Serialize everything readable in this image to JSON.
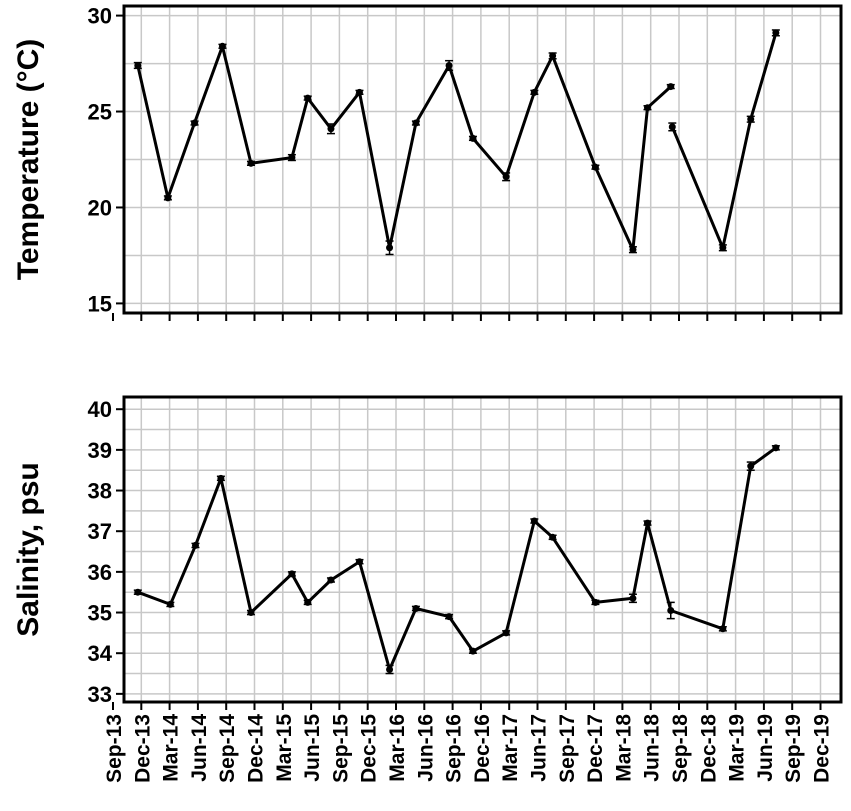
{
  "chart_data": [
    {
      "type": "line",
      "title": "",
      "xlabel": "",
      "ylabel": "Temperature (°C)",
      "ylim": [
        14.5,
        30.5
      ],
      "yticks": [
        15,
        20,
        25,
        30
      ],
      "grid": true,
      "series": [
        {
          "values": [
            {
              "x": "2013-11-20",
              "y": 27.4,
              "err": 0.15
            },
            {
              "x": "2014-02-25",
              "y": 20.5,
              "err": 0.1
            },
            {
              "x": "2014-05-22",
              "y": 24.4,
              "err": 0.1
            },
            {
              "x": "2014-08-20",
              "y": 28.4,
              "err": 0.1
            },
            {
              "x": "2014-11-20",
              "y": 22.3,
              "err": 0.1
            },
            {
              "x": "2015-04-01",
              "y": 22.6,
              "err": 0.15
            },
            {
              "x": "2015-05-22",
              "y": 25.7,
              "err": 0.1
            },
            {
              "x": "2015-08-05",
              "y": 24.1,
              "err": 0.25
            },
            {
              "x": "2015-11-05",
              "y": 26.0,
              "err": 0.1
            },
            {
              "x": "2016-02-10",
              "y": 17.9,
              "err": 0.35
            },
            {
              "x": "2016-05-05",
              "y": 24.4,
              "err": 0.1
            },
            {
              "x": "2016-08-20",
              "y": 27.4,
              "err": 0.25
            },
            {
              "x": "2016-11-05",
              "y": 23.6,
              "err": 0.1
            },
            {
              "x": "2017-02-20",
              "y": 21.6,
              "err": 0.2
            },
            {
              "x": "2017-05-22",
              "y": 26.0,
              "err": 0.1
            },
            {
              "x": "2017-07-20",
              "y": 27.9,
              "err": 0.15
            },
            {
              "x": "2017-12-05",
              "y": 22.1,
              "err": 0.1
            },
            {
              "x": "2018-04-05",
              "y": 17.8,
              "err": 0.15
            },
            {
              "x": "2018-05-22",
              "y": 25.2,
              "err": 0.1
            },
            {
              "x": "2018-08-05",
              "y": 26.3,
              "err": 0.1
            }
          ]
        },
        {
          "values": [
            {
              "x": "2018-08-10",
              "y": 24.2,
              "err": 0.2
            },
            {
              "x": "2019-01-20",
              "y": 17.9,
              "err": 0.15
            },
            {
              "x": "2019-04-20",
              "y": 24.6,
              "err": 0.15
            },
            {
              "x": "2019-07-10",
              "y": 29.1,
              "err": 0.15
            }
          ]
        }
      ]
    },
    {
      "type": "line",
      "title": "",
      "xlabel": "",
      "ylabel": "Salinity, psu",
      "ylim": [
        32.8,
        40.3
      ],
      "yticks": [
        33,
        34,
        35,
        36,
        37,
        38,
        39,
        40
      ],
      "grid": true,
      "x_tick_labels": [
        "Sep-13",
        "Dec-13",
        "Mar-14",
        "Jun-14",
        "Sep-14",
        "Dec-14",
        "Mar-15",
        "Jun-15",
        "Sep-15",
        "Dec-15",
        "Mar-16",
        "Jun-16",
        "Sep-16",
        "Dec-16",
        "Mar-17",
        "Jun-17",
        "Sep-17",
        "Dec-17",
        "Mar-18",
        "Jun-18",
        "Sep-18",
        "Dec-18",
        "Mar-19",
        "Jun-19",
        "Sep-19",
        "Dec-19"
      ],
      "series": [
        {
          "values": [
            {
              "x": "2013-11-20",
              "y": 35.5,
              "err": 0.05
            },
            {
              "x": "2014-03-05",
              "y": 35.2,
              "err": 0.05
            },
            {
              "x": "2014-05-25",
              "y": 36.65,
              "err": 0.05
            },
            {
              "x": "2014-08-15",
              "y": 38.3,
              "err": 0.05
            },
            {
              "x": "2014-11-20",
              "y": 35.0,
              "err": 0.05
            },
            {
              "x": "2015-04-01",
              "y": 35.95,
              "err": 0.05
            },
            {
              "x": "2015-05-22",
              "y": 35.25,
              "err": 0.05
            },
            {
              "x": "2015-08-05",
              "y": 35.8,
              "err": 0.05
            },
            {
              "x": "2015-11-05",
              "y": 36.25,
              "err": 0.05
            },
            {
              "x": "2016-02-10",
              "y": 33.6,
              "err": 0.1
            },
            {
              "x": "2016-05-05",
              "y": 35.1,
              "err": 0.05
            },
            {
              "x": "2016-08-20",
              "y": 34.9,
              "err": 0.05
            },
            {
              "x": "2016-11-05",
              "y": 34.05,
              "err": 0.05
            },
            {
              "x": "2017-02-20",
              "y": 34.5,
              "err": 0.05
            },
            {
              "x": "2017-05-22",
              "y": 37.25,
              "err": 0.05
            },
            {
              "x": "2017-07-20",
              "y": 36.85,
              "err": 0.05
            },
            {
              "x": "2017-12-05",
              "y": 35.25,
              "err": 0.05
            },
            {
              "x": "2018-04-05",
              "y": 35.35,
              "err": 0.1
            },
            {
              "x": "2018-05-22",
              "y": 37.2,
              "err": 0.05
            },
            {
              "x": "2018-08-05",
              "y": 35.05,
              "err": 0.2
            },
            {
              "x": "2019-01-20",
              "y": 34.6,
              "err": 0.05
            },
            {
              "x": "2019-04-20",
              "y": 38.6,
              "err": 0.1
            },
            {
              "x": "2019-07-10",
              "y": 39.05,
              "err": 0.05
            }
          ]
        }
      ]
    }
  ],
  "colors": {
    "line": "#000000",
    "grid": "#c8c8c8",
    "axis": "#000000",
    "background": "#ffffff"
  }
}
